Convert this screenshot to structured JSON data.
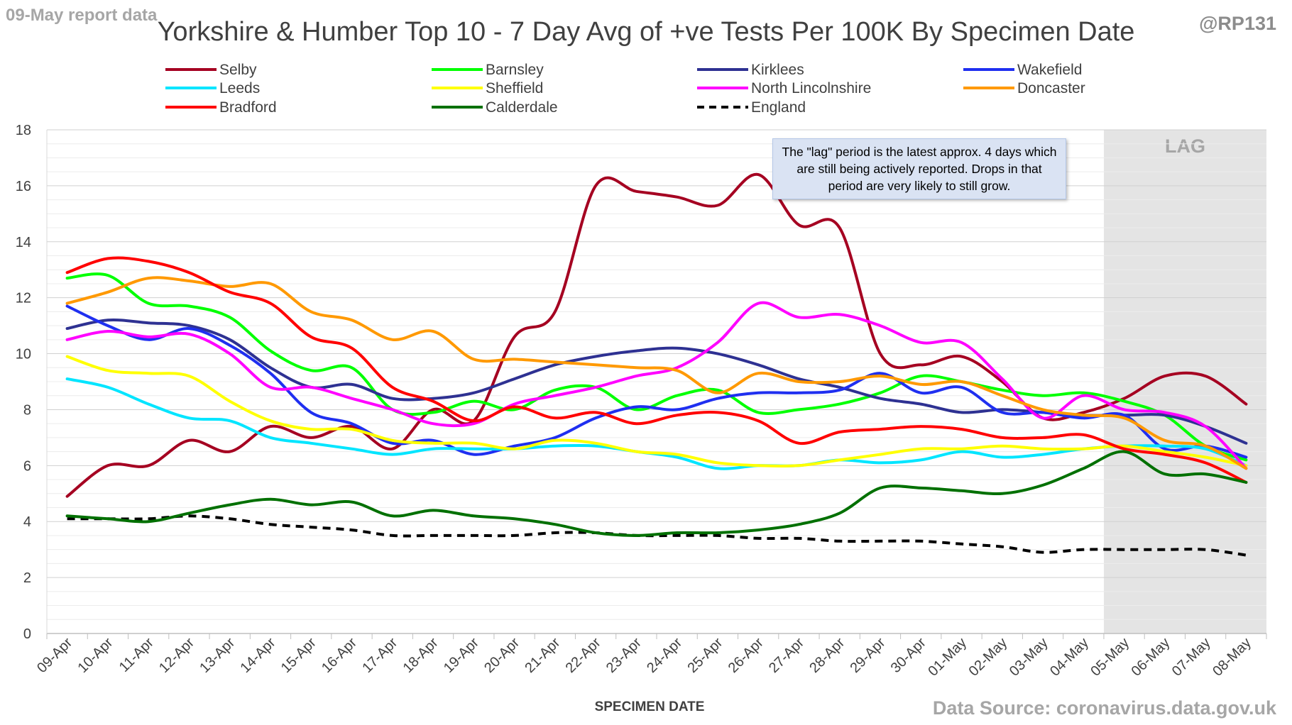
{
  "header": {
    "report_date": "09-May report data",
    "handle": "@RP131",
    "source": "Data Source: coronavirus.data.gov.uk"
  },
  "annotation": "The \"lag\" period is the latest approx. 4 days which are still being actively reported. Drops in that period are very likely to still grow.",
  "chart_data": {
    "type": "line",
    "title": "Yorkshire & Humber Top 10 - 7 Day Avg of +ve Tests Per 100K By Specimen Date",
    "xlabel": "SPECIMEN DATE",
    "ylabel": "",
    "ylim": [
      0,
      18
    ],
    "yticks": [
      0,
      2,
      4,
      6,
      8,
      10,
      12,
      14,
      16,
      18
    ],
    "grid": true,
    "legend_position": "top",
    "lag_label": "LAG",
    "lag_start": "05-May",
    "lag_end": "08-May",
    "categories": [
      "09-Apr",
      "10-Apr",
      "11-Apr",
      "12-Apr",
      "13-Apr",
      "14-Apr",
      "15-Apr",
      "16-Apr",
      "17-Apr",
      "18-Apr",
      "19-Apr",
      "20-Apr",
      "21-Apr",
      "22-Apr",
      "23-Apr",
      "24-Apr",
      "25-Apr",
      "26-Apr",
      "27-Apr",
      "28-Apr",
      "29-Apr",
      "30-Apr",
      "01-May",
      "02-May",
      "03-May",
      "04-May",
      "05-May",
      "06-May",
      "07-May",
      "08-May"
    ],
    "series": [
      {
        "name": "Selby",
        "color": "#a50021",
        "dash": false,
        "values": [
          4.9,
          6.0,
          6.0,
          6.9,
          6.5,
          7.4,
          7.0,
          7.4,
          6.6,
          8.0,
          7.6,
          10.6,
          11.5,
          16.0,
          15.8,
          15.6,
          15.3,
          16.4,
          14.6,
          14.5,
          10.0,
          9.6,
          9.9,
          9.0,
          7.7,
          7.9,
          8.4,
          9.2,
          9.2,
          8.2
        ]
      },
      {
        "name": "Barnsley",
        "color": "#00ff00",
        "dash": false,
        "values": [
          12.7,
          12.8,
          11.8,
          11.7,
          11.3,
          10.1,
          9.4,
          9.5,
          8.0,
          7.9,
          8.3,
          8.0,
          8.7,
          8.8,
          8.0,
          8.5,
          8.7,
          7.9,
          8.0,
          8.2,
          8.6,
          9.2,
          9.0,
          8.7,
          8.5,
          8.6,
          8.3,
          7.8,
          6.7,
          6.2
        ]
      },
      {
        "name": "Kirklees",
        "color": "#2e3192",
        "dash": false,
        "values": [
          10.9,
          11.2,
          11.1,
          11.0,
          10.5,
          9.5,
          8.8,
          8.9,
          8.4,
          8.4,
          8.6,
          9.1,
          9.6,
          9.9,
          10.1,
          10.2,
          10.0,
          9.6,
          9.1,
          8.8,
          8.4,
          8.2,
          7.9,
          8.0,
          7.9,
          7.8,
          7.8,
          7.8,
          7.4,
          6.8
        ]
      },
      {
        "name": "Wakefield",
        "color": "#1f2ff0",
        "dash": false,
        "values": [
          11.7,
          11.0,
          10.5,
          10.9,
          10.3,
          9.3,
          7.9,
          7.5,
          6.8,
          6.9,
          6.4,
          6.7,
          7.0,
          7.7,
          8.1,
          8.0,
          8.4,
          8.6,
          8.6,
          8.7,
          9.3,
          8.6,
          8.8,
          7.9,
          7.9,
          7.7,
          7.8,
          6.6,
          6.7,
          6.3
        ]
      },
      {
        "name": "Leeds",
        "color": "#00e5ff",
        "dash": false,
        "values": [
          9.1,
          8.8,
          8.2,
          7.7,
          7.6,
          7.0,
          6.8,
          6.6,
          6.4,
          6.6,
          6.6,
          6.6,
          6.7,
          6.7,
          6.5,
          6.3,
          5.9,
          6.0,
          6.0,
          6.2,
          6.1,
          6.2,
          6.5,
          6.3,
          6.4,
          6.6,
          6.7,
          6.7,
          6.6,
          6.0
        ]
      },
      {
        "name": "Sheffield",
        "color": "#ffff00",
        "dash": false,
        "values": [
          9.9,
          9.4,
          9.3,
          9.2,
          8.3,
          7.6,
          7.3,
          7.3,
          6.9,
          6.8,
          6.8,
          6.6,
          6.9,
          6.8,
          6.5,
          6.4,
          6.1,
          6.0,
          6.0,
          6.2,
          6.4,
          6.6,
          6.6,
          6.7,
          6.6,
          6.6,
          6.7,
          6.5,
          6.3,
          6.0
        ]
      },
      {
        "name": "North Lincolnshire",
        "color": "#ff00ff",
        "dash": false,
        "values": [
          10.5,
          10.8,
          10.6,
          10.7,
          10.0,
          8.8,
          8.8,
          8.4,
          8.0,
          7.5,
          7.5,
          8.2,
          8.5,
          8.8,
          9.2,
          9.5,
          10.4,
          11.8,
          11.3,
          11.4,
          11.0,
          10.4,
          10.4,
          9.1,
          7.7,
          8.5,
          8.0,
          7.9,
          7.4,
          5.9
        ]
      },
      {
        "name": "Doncaster",
        "color": "#ff9900",
        "dash": false,
        "values": [
          11.8,
          12.2,
          12.7,
          12.6,
          12.4,
          12.5,
          11.5,
          11.2,
          10.5,
          10.8,
          9.8,
          9.8,
          9.7,
          9.6,
          9.5,
          9.4,
          8.6,
          9.3,
          9.0,
          9.0,
          9.2,
          8.9,
          9.0,
          8.5,
          8.0,
          7.8,
          7.7,
          6.9,
          6.7,
          5.9
        ]
      },
      {
        "name": "Bradford",
        "color": "#ff0000",
        "dash": false,
        "values": [
          12.9,
          13.4,
          13.3,
          12.9,
          12.2,
          11.8,
          10.6,
          10.2,
          8.8,
          8.3,
          7.6,
          8.1,
          7.7,
          7.9,
          7.5,
          7.8,
          7.9,
          7.6,
          6.8,
          7.2,
          7.3,
          7.4,
          7.3,
          7.0,
          7.0,
          7.1,
          6.6,
          6.4,
          6.1,
          5.4
        ]
      },
      {
        "name": "Calderdale",
        "color": "#007000",
        "dash": false,
        "values": [
          4.2,
          4.1,
          4.0,
          4.3,
          4.6,
          4.8,
          4.6,
          4.7,
          4.2,
          4.4,
          4.2,
          4.1,
          3.9,
          3.6,
          3.5,
          3.6,
          3.6,
          3.7,
          3.9,
          4.3,
          5.2,
          5.2,
          5.1,
          5.0,
          5.3,
          5.9,
          6.5,
          5.7,
          5.7,
          5.4
        ]
      },
      {
        "name": "England",
        "color": "#000000",
        "dash": true,
        "values": [
          4.1,
          4.1,
          4.1,
          4.2,
          4.1,
          3.9,
          3.8,
          3.7,
          3.5,
          3.5,
          3.5,
          3.5,
          3.6,
          3.6,
          3.5,
          3.5,
          3.5,
          3.4,
          3.4,
          3.3,
          3.3,
          3.3,
          3.2,
          3.1,
          2.9,
          3.0,
          3.0,
          3.0,
          3.0,
          2.8
        ]
      }
    ]
  }
}
